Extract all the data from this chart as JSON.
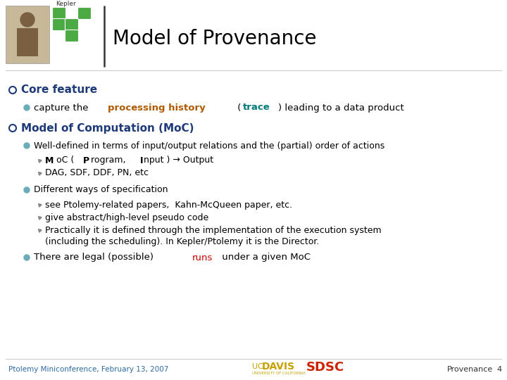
{
  "title": "Model of Provenance",
  "bg_color": "#ffffff",
  "title_color": "#000000",
  "title_fontsize": 20,
  "bullet1_heading": "Core feature",
  "bullet1_heading_color": "#1e3a78",
  "bullet1_sub1_parts": [
    {
      "text": "capture the ",
      "bold": false,
      "color": "#000000"
    },
    {
      "text": "processing history",
      "bold": true,
      "color": "#b05a00"
    },
    {
      "text": " (",
      "bold": false,
      "color": "#000000"
    },
    {
      "text": "trace",
      "bold": true,
      "color": "#007b7b"
    },
    {
      "text": ") leading to a data product",
      "bold": false,
      "color": "#000000"
    }
  ],
  "bullet2_heading": "Model of Computation (MoC)",
  "bullet2_heading_color": "#1e3a78",
  "bullet2_sub1": "Well-defined in terms of input/output relations and the (partial) order of actions",
  "bullet2_sub1_sub1_parts": [
    {
      "text": "M",
      "bold": true,
      "color": "#000000"
    },
    {
      "text": "oC ( ",
      "bold": false,
      "color": "#000000"
    },
    {
      "text": "P",
      "bold": true,
      "color": "#000000"
    },
    {
      "text": "rogram, ",
      "bold": false,
      "color": "#000000"
    },
    {
      "text": "I",
      "bold": true,
      "color": "#000000"
    },
    {
      "text": "nput ) → Output",
      "bold": false,
      "color": "#000000"
    }
  ],
  "bullet2_sub1_sub2": "DAG, SDF, DDF, PN, etc",
  "bullet2_sub2": "Different ways of specification",
  "bullet2_sub2_sub1": "see Ptolemy-related papers,  Kahn-McQueen paper, etc.",
  "bullet2_sub2_sub2": "give abstract/high-level pseudo code",
  "bullet2_sub2_sub3_line1": "Practically it is defined through the implementation of the execution system",
  "bullet2_sub2_sub3_line2": "(including the scheduling). In Kepler/Ptolemy it is the Director.",
  "bullet2_sub3_parts": [
    {
      "text": "There are legal (possible) ",
      "bold": false,
      "color": "#000000"
    },
    {
      "text": "runs",
      "bold": false,
      "color": "#cc0000"
    },
    {
      "text": " under a given MoC",
      "bold": false,
      "color": "#000000"
    }
  ],
  "footer_left": "Ptolemy Miniconference, February 13, 2007",
  "footer_left_color": "#2e6b9e",
  "footer_right_text": "Provenance",
  "footer_page": "4",
  "footer_color": "#333333",
  "bullet_main_color": "#1e3a78",
  "bullet_sub_color": "#6aacb8",
  "bullet_subsub_color": "#888888",
  "sdsc_color": "#cc2200",
  "ucdavis_color": "#c8a000",
  "ucdavis_sub_color": "#c8a000",
  "green_logo_color": "#4caa44"
}
